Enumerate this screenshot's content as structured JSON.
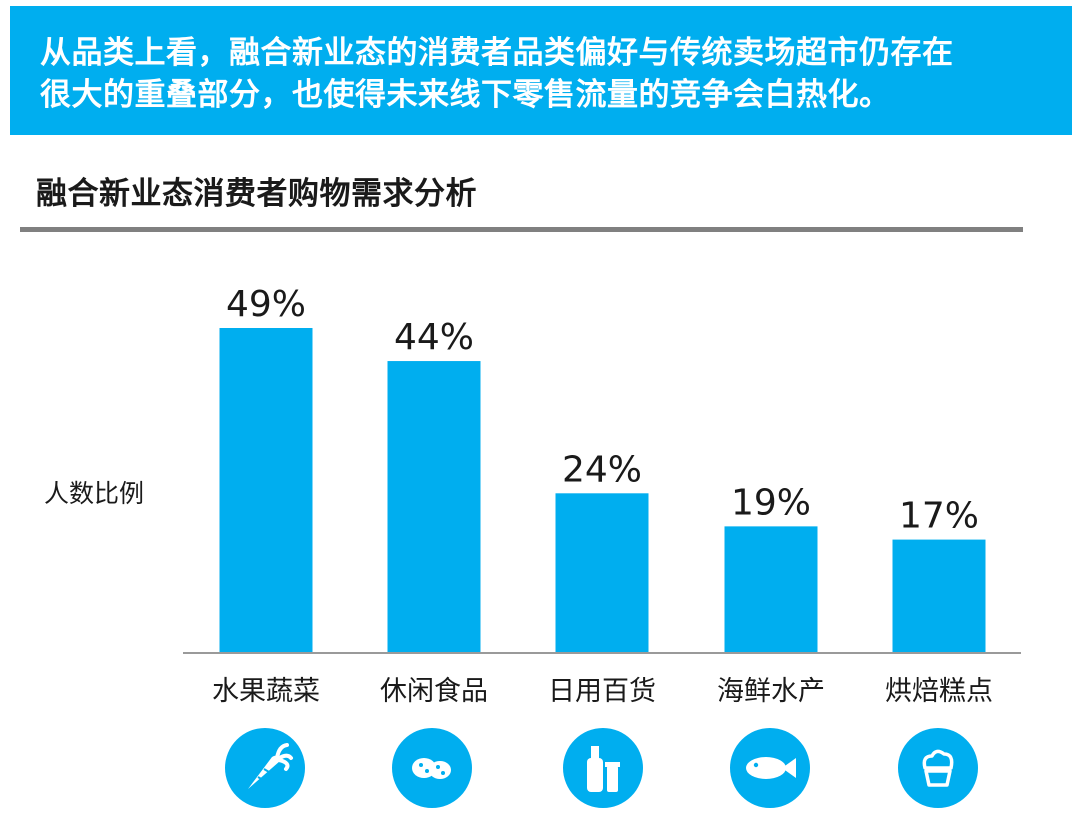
{
  "banner": {
    "lines": [
      "从品类上看，融合新业态的消费者品类偏好与传统卖场超市仍存在",
      "很大的重叠部分，也使得未来线下零售流量的竞争会白热化。"
    ]
  },
  "section": {
    "title": "融合新业态消费者购物需求分析"
  },
  "colors": {
    "accent": "#00aeef",
    "rule": "#808080",
    "text": "#1a1a1a"
  },
  "chart_data": {
    "type": "bar",
    "title": "",
    "ylabel": "人数比例",
    "xlabel": "",
    "ylim": [
      0,
      55
    ],
    "categories": [
      "水果蔬菜",
      "休闲食品",
      "日用百货",
      "海鲜水产",
      "烘焙糕点"
    ],
    "values": [
      49,
      44,
      24,
      19,
      17
    ],
    "value_labels": [
      "49%",
      "44%",
      "24%",
      "19%",
      "17%"
    ],
    "category_icons": [
      "carrot-icon",
      "cookies-icon",
      "bottles-icon",
      "fish-icon",
      "cupcake-icon"
    ],
    "grid": false,
    "legend": "none"
  }
}
